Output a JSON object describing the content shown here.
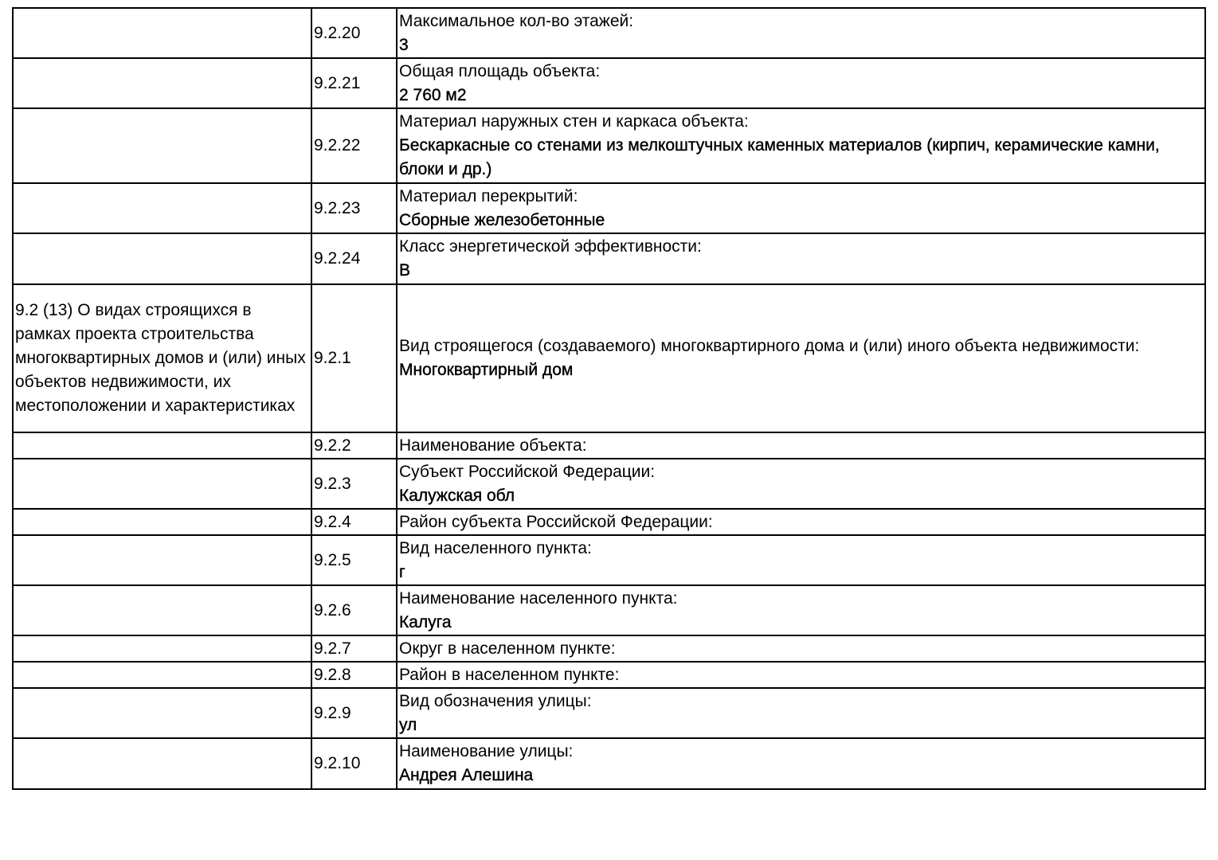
{
  "rows": [
    {
      "section": "",
      "code": "9.2.20",
      "label": "Максимальное кол-во этажей:",
      "value": "3"
    },
    {
      "section": "",
      "code": "9.2.21",
      "label": "Общая площадь объекта:",
      "value": "2 760 м2"
    },
    {
      "section": "",
      "code": "9.2.22",
      "label": "Материал наружных стен и каркаса объекта:",
      "value": "Бескаркасные со стенами из мелкоштучных каменных материалов (кирпич, керамические камни, блоки и др.)"
    },
    {
      "section": "",
      "code": "9.2.23",
      "label": "Материал перекрытий:",
      "value": "Сборные железобетонные"
    },
    {
      "section": "",
      "code": "9.2.24",
      "label": "Класс энергетической эффективности:",
      "value": "В"
    },
    {
      "section": "9.2 (13) О видах строящихся в рамках проекта строительства многоквартирных домов и (или) иных объектов недвижимости, их местоположении и характеристиках",
      "code": "9.2.1",
      "label": "Вид строящегося (создаваемого) многоквартирного дома и (или) иного объекта недвижимости:",
      "value": "Многоквартирный дом"
    },
    {
      "section": "",
      "code": "9.2.2",
      "label": "Наименование объекта:",
      "value": ""
    },
    {
      "section": "",
      "code": "9.2.3",
      "label": "Субъект Российской Федерации:",
      "value": "Калужская обл"
    },
    {
      "section": "",
      "code": "9.2.4",
      "label": "Район субъекта Российской Федерации:",
      "value": ""
    },
    {
      "section": "",
      "code": "9.2.5",
      "label": "Вид населенного пункта:",
      "value": "г"
    },
    {
      "section": "",
      "code": "9.2.6",
      "label": "Наименование населенного пункта:",
      "value": "Калуга"
    },
    {
      "section": "",
      "code": "9.2.7",
      "label": "Округ в населенном пункте:",
      "value": ""
    },
    {
      "section": "",
      "code": "9.2.8",
      "label": "Район в населенном пункте:",
      "value": ""
    },
    {
      "section": "",
      "code": "9.2.9",
      "label": "Вид обозначения улицы:",
      "value": "ул"
    },
    {
      "section": "",
      "code": "9.2.10",
      "label": "Наименование улицы:",
      "value": "Андрея Алешина"
    }
  ]
}
